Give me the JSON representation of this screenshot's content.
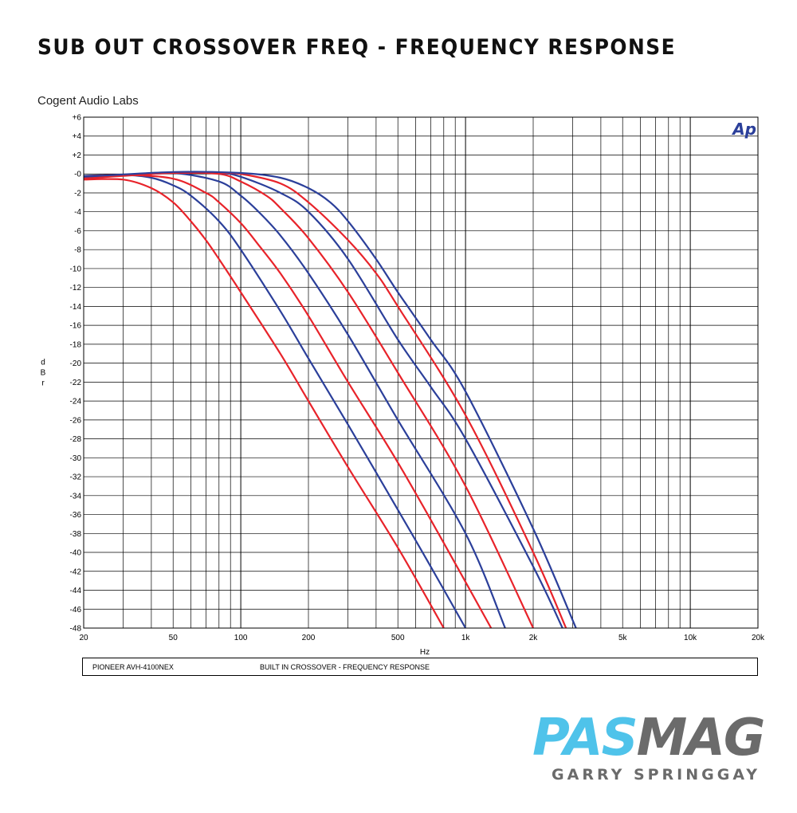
{
  "page": {
    "title": "SUB OUT CROSSOVER FREQ - FREQUENCY RESPONSE",
    "source": "Cogent Audio Labs",
    "footer_left": "PIONEER AVH-4100NEX",
    "footer_right": "BUILT IN CROSSOVER  -  FREQUENCY RESPONSE",
    "logo_mark": "Ap",
    "brand_pas": "PAS",
    "brand_mag": "MAG",
    "brand_sub": "GARRY SPRINGGAY"
  },
  "chart_data": {
    "type": "line",
    "title": "SUB OUT CROSSOVER FREQ - FREQUENCY RESPONSE",
    "xlabel": "Hz",
    "ylabel": "dBr",
    "xscale": "log",
    "xlim": [
      20,
      20000
    ],
    "ylim": [
      -48,
      6
    ],
    "grid": true,
    "legend": "none",
    "x_tick_values": [
      20,
      50,
      100,
      200,
      500,
      1000,
      2000,
      5000,
      10000,
      20000
    ],
    "x_tick_labels": [
      "20",
      "50",
      "100",
      "200",
      "500",
      "1k",
      "2k",
      "5k",
      "10k",
      "20k"
    ],
    "y_ticks": [
      6,
      4,
      2,
      0,
      -2,
      -4,
      -6,
      -8,
      -10,
      -12,
      -14,
      -16,
      -18,
      -20,
      -22,
      -24,
      -26,
      -28,
      -30,
      -32,
      -34,
      -36,
      -38,
      -40,
      -42,
      -44,
      -46,
      -48
    ],
    "y_tick_labels": [
      "+6",
      "+4",
      "+2",
      "-0",
      "-2",
      "-4",
      "-6",
      "-8",
      "-10",
      "-12",
      "-14",
      "-16",
      "-18",
      "-20",
      "-22",
      "-24",
      "-26",
      "-28",
      "-30",
      "-32",
      "-34",
      "-36",
      "-38",
      "-40",
      "-42",
      "-44",
      "-46",
      "-48"
    ],
    "series": [
      {
        "color": "#e8232a",
        "x": [
          20,
          30,
          40,
          50,
          60,
          70,
          80,
          100,
          150,
          200,
          300,
          500,
          800
        ],
        "y": [
          -0.6,
          -0.6,
          -1.5,
          -3.0,
          -5.0,
          -7.0,
          -9.0,
          -12.5,
          -19.0,
          -24.0,
          -31.0,
          -39.5,
          -48.0
        ]
      },
      {
        "color": "#2b3f9a",
        "x": [
          20,
          30,
          40,
          50,
          60,
          80,
          100,
          150,
          200,
          300,
          500,
          700,
          1000
        ],
        "y": [
          -0.2,
          -0.1,
          -0.4,
          -1.2,
          -2.3,
          -5.0,
          -8.0,
          -14.5,
          -19.5,
          -26.5,
          -35.5,
          -41.5,
          -48.0
        ]
      },
      {
        "color": "#e8232a",
        "x": [
          20,
          30,
          50,
          70,
          80,
          100,
          120,
          150,
          200,
          300,
          500,
          800,
          1300
        ],
        "y": [
          -0.3,
          -0.1,
          -0.5,
          -2.0,
          -3.0,
          -5.2,
          -7.5,
          -10.5,
          -15.0,
          -22.0,
          -30.5,
          -39.0,
          -48.0
        ]
      },
      {
        "color": "#2b3f9a",
        "x": [
          20,
          30,
          50,
          80,
          100,
          120,
          150,
          200,
          300,
          500,
          1000,
          1500
        ],
        "y": [
          -0.3,
          -0.1,
          0.1,
          -0.8,
          -2.3,
          -4.0,
          -6.5,
          -10.5,
          -17.0,
          -26.0,
          -38.0,
          -48.0
        ]
      },
      {
        "color": "#e8232a",
        "x": [
          20,
          30,
          50,
          80,
          100,
          130,
          150,
          200,
          300,
          500,
          1000,
          2000
        ],
        "y": [
          -0.5,
          -0.2,
          0.1,
          0.0,
          -0.8,
          -2.3,
          -3.6,
          -6.8,
          -12.5,
          -21.0,
          -33.0,
          -48.0
        ]
      },
      {
        "color": "#2b3f9a",
        "x": [
          20,
          30,
          50,
          80,
          100,
          150,
          200,
          300,
          500,
          700,
          1000,
          2000,
          2700
        ],
        "y": [
          -0.4,
          -0.1,
          0.1,
          0.1,
          -0.3,
          -2.0,
          -4.0,
          -9.0,
          -17.5,
          -22.5,
          -28.0,
          -41.5,
          -48.0
        ]
      },
      {
        "color": "#e8232a",
        "x": [
          20,
          30,
          50,
          80,
          100,
          150,
          200,
          300,
          400,
          500,
          1000,
          2000,
          2800
        ],
        "y": [
          -0.4,
          -0.1,
          0.1,
          0.1,
          0.0,
          -1.0,
          -3.0,
          -7.0,
          -10.5,
          -14.0,
          -25.5,
          -40.0,
          -48.0
        ]
      },
      {
        "color": "#2b3f9a",
        "x": [
          20,
          50,
          100,
          150,
          200,
          250,
          300,
          400,
          500,
          700,
          1000,
          2000,
          3100
        ],
        "y": [
          -0.3,
          0.2,
          0.1,
          -0.4,
          -1.5,
          -3.0,
          -5.0,
          -9.0,
          -12.5,
          -17.5,
          -23.0,
          -37.5,
          -48.0
        ]
      }
    ]
  }
}
